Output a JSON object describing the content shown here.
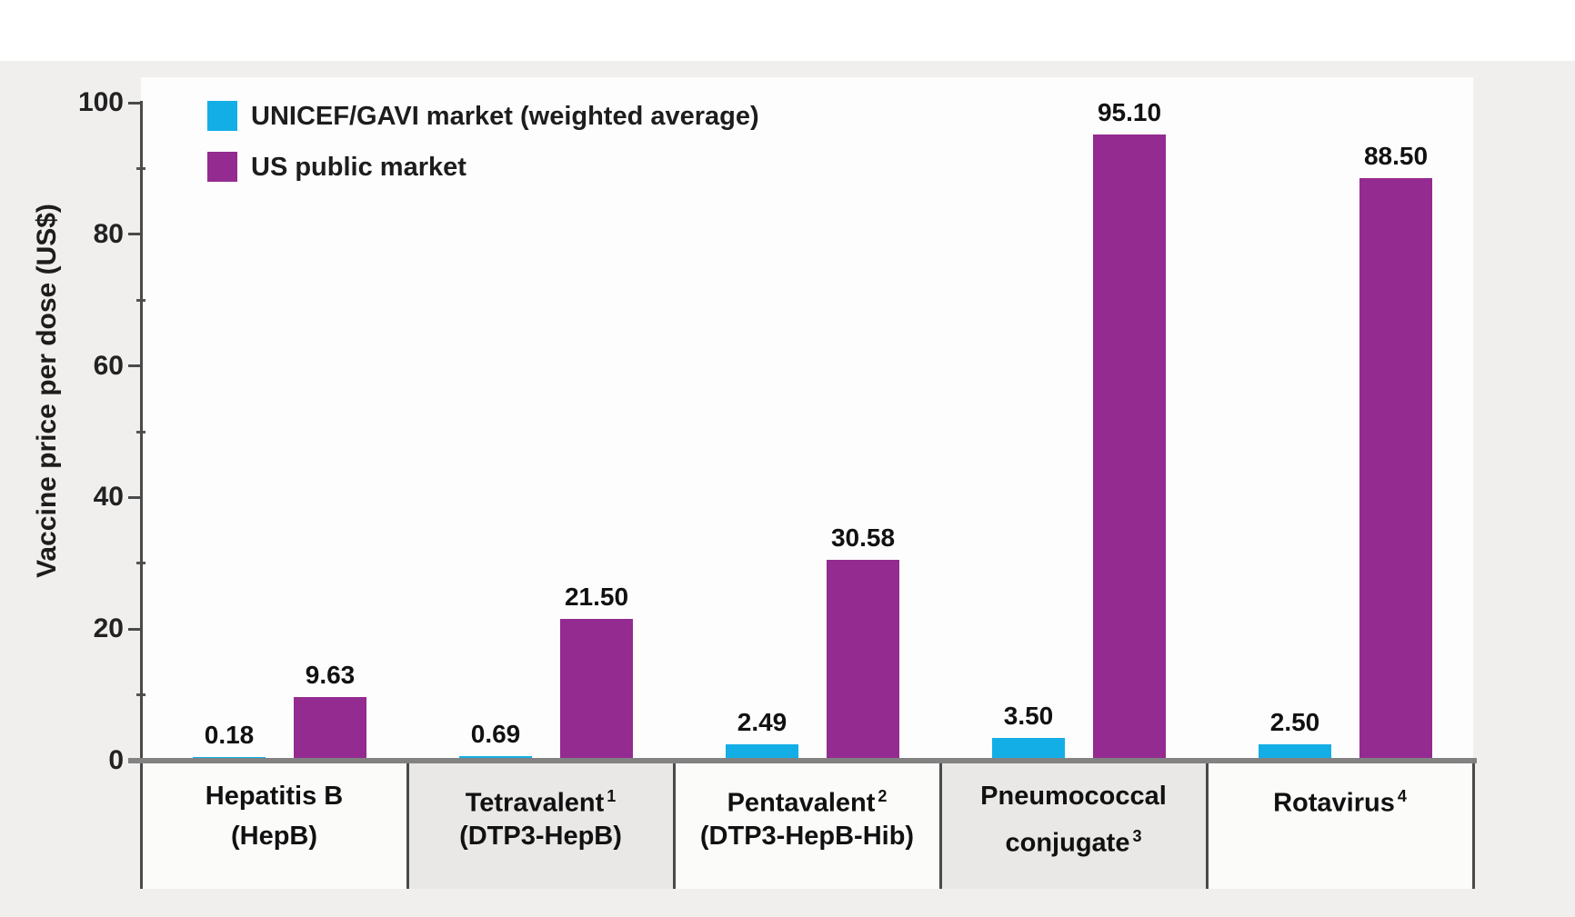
{
  "chart_data": {
    "type": "bar",
    "title": "",
    "ylabel": "Vaccine price per dose (US$)",
    "xlabel": "",
    "ylim": [
      0,
      100
    ],
    "y_major_ticks": [
      0,
      20,
      40,
      60,
      80,
      100
    ],
    "y_minor_ticks": [
      10,
      30,
      50,
      70,
      90
    ],
    "grid": false,
    "legend_position": "top-left",
    "categories": [
      {
        "rows": [
          {
            "text": "Hepatitis B",
            "sup": ""
          },
          {
            "text": "(HepB)",
            "sup": ""
          }
        ],
        "shaded": false
      },
      {
        "rows": [
          {
            "text": "Tetravalent",
            "sup": "1"
          },
          {
            "text": "(DTP3-HepB)",
            "sup": ""
          }
        ],
        "shaded": true
      },
      {
        "rows": [
          {
            "text": "Pentavalent",
            "sup": "2"
          },
          {
            "text": "(DTP3-HepB-Hib)",
            "sup": ""
          }
        ],
        "shaded": false
      },
      {
        "rows": [
          {
            "text": "Pneumococcal",
            "sup": ""
          },
          {
            "text": "conjugate",
            "sup": "3"
          }
        ],
        "shaded": true
      },
      {
        "rows": [
          {
            "text": "Rotavirus",
            "sup": "4"
          }
        ],
        "shaded": false
      }
    ],
    "series": [
      {
        "name": "UNICEF/GAVI market (weighted average)",
        "color": "#14aee6",
        "values": [
          0.18,
          0.69,
          2.49,
          3.5,
          2.5
        ],
        "labels": [
          "0.18",
          "0.69",
          "2.49",
          "3.50",
          "2.50"
        ]
      },
      {
        "name": "US public market",
        "color": "#942b90",
        "values": [
          9.63,
          21.5,
          30.58,
          95.1,
          88.5
        ],
        "labels": [
          "9.63",
          "21.50",
          "30.58",
          "95.10",
          "88.50"
        ]
      }
    ]
  }
}
